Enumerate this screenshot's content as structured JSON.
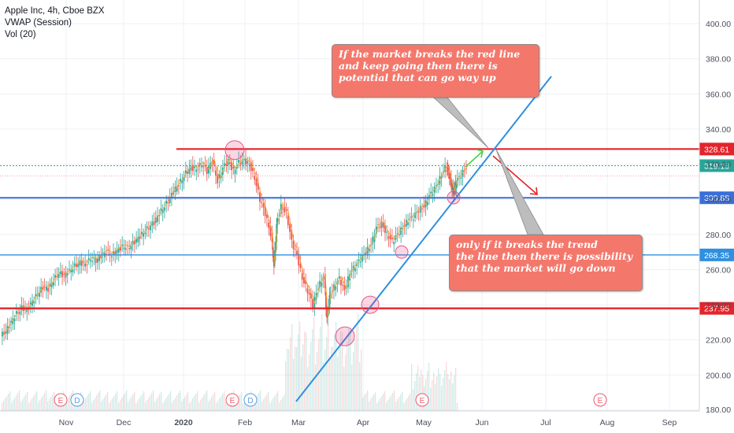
{
  "legend": {
    "symbol": "Apple Inc, 4h, Cboe BZX",
    "indicator_vwap": "VWAP (Session)",
    "indicator_vol": "Vol (20)"
  },
  "annotations": {
    "callout_up": "If the market breaks the red line\nand keep going then there is\npotential that can go way up",
    "callout_down": "only if it breaks the trend\nthe line then there is possibility\nthat the market will go down"
  },
  "colors": {
    "up": "#26a69a",
    "down": "#ef5350",
    "red_line": "#e3242b",
    "blue_line": "#3a6fd8",
    "trend_line": "#2f8fe0",
    "callout_bg": "#f4776b",
    "current_price": "#26a69a"
  },
  "chart_data": {
    "type": "candlestick",
    "y_axis": {
      "range": [
        178,
        412
      ],
      "ticks": [
        "180.00",
        "200.00",
        "220.00",
        "240.00",
        "260.00",
        "280.00",
        "300.00",
        "320.00",
        "340.00",
        "360.00",
        "380.00",
        "400.00"
      ],
      "tick_values": [
        180,
        200,
        220,
        240,
        260,
        280,
        300,
        320,
        340,
        360,
        380,
        400
      ]
    },
    "x_axis": {
      "labels": [
        "Nov",
        "Dec",
        "2020",
        "Feb",
        "Mar",
        "Apr",
        "May",
        "Jun",
        "Jul",
        "Aug",
        "Sep"
      ]
    },
    "horizontal_levels": [
      {
        "value": 328.61,
        "label": "328.61",
        "color": "#e3242b"
      },
      {
        "value": 300.88,
        "label": "300.88",
        "color": "#3a6fd8"
      },
      {
        "value": 268.35,
        "label": "268.35",
        "color": "#2f8fe0"
      },
      {
        "value": 237.95,
        "label": "237.95",
        "color": "#e3242b"
      }
    ],
    "current_price": {
      "value": 319.15,
      "label": "319.15"
    },
    "price_path": [
      [
        0,
        222
      ],
      [
        4,
        225
      ],
      [
        8,
        230
      ],
      [
        12,
        235
      ],
      [
        16,
        238
      ],
      [
        20,
        237
      ],
      [
        24,
        242
      ],
      [
        28,
        246
      ],
      [
        32,
        250
      ],
      [
        36,
        249
      ],
      [
        40,
        254
      ],
      [
        44,
        258
      ],
      [
        48,
        257
      ],
      [
        52,
        259
      ],
      [
        56,
        262
      ],
      [
        60,
        264
      ],
      [
        64,
        263
      ],
      [
        68,
        266
      ],
      [
        72,
        265
      ],
      [
        76,
        268
      ],
      [
        80,
        270
      ],
      [
        84,
        268
      ],
      [
        88,
        271
      ],
      [
        92,
        273
      ],
      [
        96,
        272
      ],
      [
        100,
        275
      ],
      [
        104,
        278
      ],
      [
        108,
        281
      ],
      [
        112,
        284
      ],
      [
        116,
        287
      ],
      [
        120,
        292
      ],
      [
        124,
        296
      ],
      [
        128,
        301
      ],
      [
        132,
        306
      ],
      [
        136,
        310
      ],
      [
        140,
        315
      ],
      [
        144,
        318
      ],
      [
        148,
        317
      ],
      [
        152,
        320
      ],
      [
        156,
        316
      ],
      [
        160,
        322
      ],
      [
        164,
        310
      ],
      [
        168,
        318
      ],
      [
        172,
        322
      ],
      [
        176,
        316
      ],
      [
        180,
        321
      ],
      [
        184,
        322
      ],
      [
        188,
        320
      ],
      [
        192,
        312
      ],
      [
        196,
        300
      ],
      [
        200,
        292
      ],
      [
        204,
        280
      ],
      [
        206,
        262
      ],
      [
        208,
        285
      ],
      [
        212,
        296
      ],
      [
        216,
        292
      ],
      [
        220,
        276
      ],
      [
        224,
        268
      ],
      [
        228,
        255
      ],
      [
        232,
        248
      ],
      [
        236,
        240
      ],
      [
        240,
        250
      ],
      [
        244,
        256
      ],
      [
        246,
        232
      ],
      [
        248,
        244
      ],
      [
        252,
        250
      ],
      [
        256,
        255
      ],
      [
        260,
        248
      ],
      [
        264,
        258
      ],
      [
        268,
        262
      ],
      [
        272,
        266
      ],
      [
        276,
        270
      ],
      [
        280,
        274
      ],
      [
        284,
        284
      ],
      [
        288,
        286
      ],
      [
        292,
        280
      ],
      [
        296,
        276
      ],
      [
        300,
        280
      ],
      [
        304,
        284
      ],
      [
        308,
        288
      ],
      [
        312,
        290
      ],
      [
        316,
        294
      ],
      [
        320,
        296
      ],
      [
        324,
        302
      ],
      [
        328,
        306
      ],
      [
        332,
        312
      ],
      [
        336,
        318
      ],
      [
        338,
        316
      ],
      [
        340,
        308
      ],
      [
        342,
        304
      ],
      [
        344,
        310
      ],
      [
        348,
        314
      ],
      [
        352,
        318
      ]
    ],
    "swing_circles": [
      {
        "label": "Jan top",
        "value": 328
      },
      {
        "label": "Mar low",
        "value": 222
      },
      {
        "label": "Mar retest",
        "value": 240
      },
      {
        "label": "Apr dip",
        "value": 269
      },
      {
        "label": "May dip",
        "value": 301
      }
    ],
    "earnings_markers": [
      "E",
      "D",
      "E",
      "D",
      "E",
      "E"
    ]
  }
}
